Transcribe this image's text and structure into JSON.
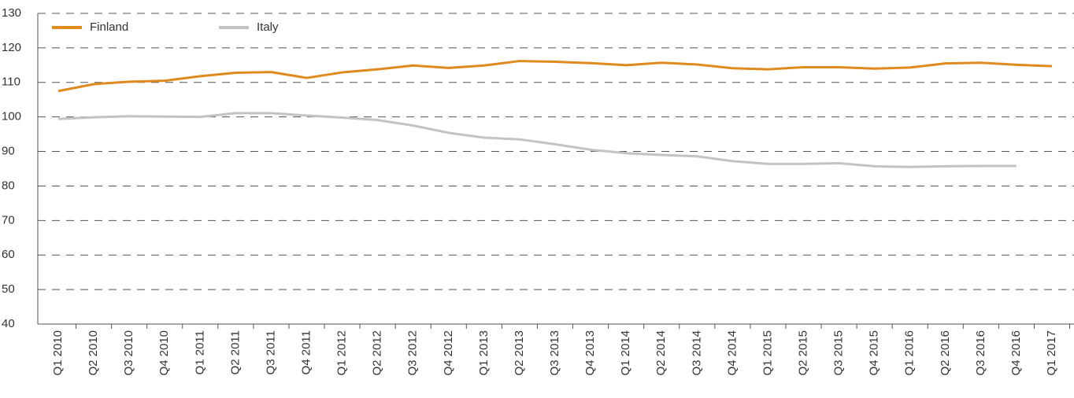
{
  "chart_data": {
    "type": "line",
    "categories": [
      "Q1 2010",
      "Q2 2010",
      "Q3 2010",
      "Q4 2010",
      "Q1 2011",
      "Q2 2011",
      "Q3 2011",
      "Q4 2011",
      "Q1 2012",
      "Q2 2012",
      "Q3 2012",
      "Q4 2012",
      "Q1 2013",
      "Q2 2013",
      "Q3 2013",
      "Q4 2013",
      "Q1 2014",
      "Q2 2014",
      "Q3 2014",
      "Q4 2014",
      "Q1 2015",
      "Q2 2015",
      "Q3 2015",
      "Q4 2015",
      "Q1 2016",
      "Q2 2016",
      "Q3 2016",
      "Q4 2016",
      "Q1 2017"
    ],
    "series": [
      {
        "name": "Finland",
        "color": "#e08a1e",
        "values": [
          107.5,
          109.5,
          110.2,
          110.5,
          111.8,
          112.8,
          113.0,
          111.3,
          112.9,
          113.8,
          114.9,
          114.2,
          114.9,
          116.2,
          116.0,
          115.6,
          115.0,
          115.7,
          115.2,
          114.1,
          113.8,
          114.4,
          114.4,
          114.0,
          114.3,
          115.5,
          115.7,
          115.1,
          114.7
        ]
      },
      {
        "name": "Italy",
        "color": "#c3c3c3",
        "values": [
          99.4,
          99.9,
          100.2,
          100.1,
          100.0,
          101.1,
          101.1,
          100.4,
          99.8,
          99.1,
          97.5,
          95.4,
          94.0,
          93.5,
          92.1,
          90.5,
          89.5,
          89.0,
          88.6,
          87.2,
          86.4,
          86.4,
          86.6,
          85.7,
          85.5,
          85.7,
          85.8,
          85.8,
          null
        ]
      }
    ],
    "ylim": [
      40,
      130
    ],
    "yticks": [
      40,
      50,
      60,
      70,
      80,
      90,
      100,
      110,
      120,
      130
    ],
    "grid": true,
    "legend": "upper left"
  }
}
